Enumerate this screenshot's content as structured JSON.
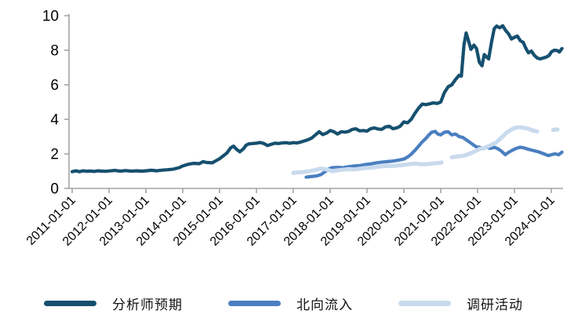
{
  "chart_data": {
    "type": "line",
    "title": "",
    "xlabel": "",
    "ylabel": "",
    "ylim": [
      0,
      10
    ],
    "xlim_years": [
      2010.9,
      2024.45
    ],
    "grid": false,
    "legend_position": "bottom",
    "axis_color": "#a3a3a3",
    "tick_label_color": "#000000",
    "y_ticks": [
      "0",
      "2",
      "4",
      "6",
      "8",
      "10"
    ],
    "x_tick_labels": [
      "2011-01-01",
      "2012-01-01",
      "2013-01-01",
      "2014-01-01",
      "2015-01-01",
      "2016-01-01",
      "2017-01-01",
      "2018-01-01",
      "2019-01-01",
      "2020-01-01",
      "2021-01-01",
      "2022-01-01",
      "2023-01-01",
      "2024-01-01"
    ],
    "series": [
      {
        "key": "analyst-expectation",
        "name": "分析师预期",
        "color": "#16506f",
        "line_width": 4.2,
        "points": [
          [
            2011.0,
            0.97
          ],
          [
            2011.1,
            1.02
          ],
          [
            2011.2,
            0.97
          ],
          [
            2011.3,
            1.02
          ],
          [
            2011.4,
            0.99
          ],
          [
            2011.5,
            1.01
          ],
          [
            2011.6,
            0.98
          ],
          [
            2011.7,
            1.02
          ],
          [
            2011.8,
            1.0
          ],
          [
            2011.9,
            0.99
          ],
          [
            2012.0,
            1.01
          ],
          [
            2012.15,
            1.04
          ],
          [
            2012.3,
            1.0
          ],
          [
            2012.45,
            1.03
          ],
          [
            2012.6,
            1.0
          ],
          [
            2012.75,
            1.02
          ],
          [
            2012.9,
            1.0
          ],
          [
            2013.0,
            1.02
          ],
          [
            2013.15,
            1.05
          ],
          [
            2013.3,
            1.02
          ],
          [
            2013.45,
            1.06
          ],
          [
            2013.6,
            1.08
          ],
          [
            2013.75,
            1.12
          ],
          [
            2013.9,
            1.2
          ],
          [
            2014.0,
            1.3
          ],
          [
            2014.15,
            1.4
          ],
          [
            2014.3,
            1.45
          ],
          [
            2014.45,
            1.43
          ],
          [
            2014.55,
            1.55
          ],
          [
            2014.65,
            1.5
          ],
          [
            2014.8,
            1.48
          ],
          [
            2014.9,
            1.6
          ],
          [
            2015.0,
            1.72
          ],
          [
            2015.1,
            1.88
          ],
          [
            2015.2,
            2.05
          ],
          [
            2015.3,
            2.35
          ],
          [
            2015.38,
            2.45
          ],
          [
            2015.45,
            2.28
          ],
          [
            2015.55,
            2.12
          ],
          [
            2015.65,
            2.3
          ],
          [
            2015.72,
            2.5
          ],
          [
            2015.8,
            2.58
          ],
          [
            2015.9,
            2.6
          ],
          [
            2016.0,
            2.62
          ],
          [
            2016.1,
            2.66
          ],
          [
            2016.2,
            2.6
          ],
          [
            2016.3,
            2.48
          ],
          [
            2016.4,
            2.55
          ],
          [
            2016.5,
            2.62
          ],
          [
            2016.6,
            2.6
          ],
          [
            2016.7,
            2.63
          ],
          [
            2016.8,
            2.65
          ],
          [
            2016.9,
            2.61
          ],
          [
            2017.0,
            2.65
          ],
          [
            2017.1,
            2.63
          ],
          [
            2017.2,
            2.68
          ],
          [
            2017.3,
            2.75
          ],
          [
            2017.4,
            2.82
          ],
          [
            2017.5,
            2.92
          ],
          [
            2017.6,
            3.1
          ],
          [
            2017.7,
            3.28
          ],
          [
            2017.8,
            3.12
          ],
          [
            2017.9,
            3.2
          ],
          [
            2018.0,
            3.35
          ],
          [
            2018.1,
            3.28
          ],
          [
            2018.2,
            3.15
          ],
          [
            2018.3,
            3.28
          ],
          [
            2018.4,
            3.26
          ],
          [
            2018.5,
            3.3
          ],
          [
            2018.6,
            3.42
          ],
          [
            2018.7,
            3.45
          ],
          [
            2018.8,
            3.33
          ],
          [
            2018.9,
            3.35
          ],
          [
            2019.0,
            3.32
          ],
          [
            2019.1,
            3.46
          ],
          [
            2019.2,
            3.5
          ],
          [
            2019.3,
            3.44
          ],
          [
            2019.4,
            3.42
          ],
          [
            2019.5,
            3.56
          ],
          [
            2019.6,
            3.6
          ],
          [
            2019.7,
            3.46
          ],
          [
            2019.8,
            3.5
          ],
          [
            2019.9,
            3.6
          ],
          [
            2020.0,
            3.85
          ],
          [
            2020.1,
            3.8
          ],
          [
            2020.2,
            4.0
          ],
          [
            2020.3,
            4.35
          ],
          [
            2020.4,
            4.65
          ],
          [
            2020.5,
            4.88
          ],
          [
            2020.6,
            4.85
          ],
          [
            2020.7,
            4.9
          ],
          [
            2020.8,
            4.95
          ],
          [
            2020.9,
            4.92
          ],
          [
            2021.0,
            5.0
          ],
          [
            2021.1,
            5.55
          ],
          [
            2021.2,
            5.88
          ],
          [
            2021.3,
            6.0
          ],
          [
            2021.4,
            6.3
          ],
          [
            2021.5,
            6.55
          ],
          [
            2021.56,
            6.5
          ],
          [
            2021.63,
            8.3
          ],
          [
            2021.69,
            9.0
          ],
          [
            2021.76,
            8.5
          ],
          [
            2021.82,
            8.05
          ],
          [
            2021.9,
            8.3
          ],
          [
            2021.97,
            8.1
          ],
          [
            2022.05,
            7.3
          ],
          [
            2022.12,
            7.1
          ],
          [
            2022.18,
            7.75
          ],
          [
            2022.25,
            7.6
          ],
          [
            2022.3,
            7.5
          ],
          [
            2022.38,
            8.5
          ],
          [
            2022.45,
            9.25
          ],
          [
            2022.52,
            9.4
          ],
          [
            2022.6,
            9.3
          ],
          [
            2022.68,
            9.42
          ],
          [
            2022.76,
            9.15
          ],
          [
            2022.84,
            8.95
          ],
          [
            2022.92,
            8.65
          ],
          [
            2023.0,
            8.75
          ],
          [
            2023.08,
            8.82
          ],
          [
            2023.16,
            8.55
          ],
          [
            2023.24,
            8.45
          ],
          [
            2023.3,
            8.15
          ],
          [
            2023.38,
            7.85
          ],
          [
            2023.46,
            7.95
          ],
          [
            2023.54,
            7.7
          ],
          [
            2023.62,
            7.55
          ],
          [
            2023.7,
            7.5
          ],
          [
            2023.78,
            7.55
          ],
          [
            2023.86,
            7.6
          ],
          [
            2023.94,
            7.7
          ],
          [
            2024.0,
            7.9
          ],
          [
            2024.08,
            8.0
          ],
          [
            2024.16,
            7.98
          ],
          [
            2024.22,
            7.9
          ],
          [
            2024.29,
            8.1
          ]
        ]
      },
      {
        "key": "northbound-inflow",
        "name": "北向流入",
        "color": "#4a7fc1",
        "line_width": 4.2,
        "points": [
          [
            2017.35,
            0.65
          ],
          [
            2017.45,
            0.68
          ],
          [
            2017.55,
            0.7
          ],
          [
            2017.65,
            0.73
          ],
          [
            2017.75,
            0.8
          ],
          [
            2017.85,
            0.95
          ],
          [
            2017.95,
            1.12
          ],
          [
            2018.05,
            1.2
          ],
          [
            2018.2,
            1.22
          ],
          [
            2018.35,
            1.2
          ],
          [
            2018.5,
            1.26
          ],
          [
            2018.65,
            1.3
          ],
          [
            2018.8,
            1.32
          ],
          [
            2018.95,
            1.38
          ],
          [
            2019.1,
            1.42
          ],
          [
            2019.25,
            1.48
          ],
          [
            2019.4,
            1.52
          ],
          [
            2019.55,
            1.55
          ],
          [
            2019.7,
            1.58
          ],
          [
            2019.85,
            1.63
          ],
          [
            2020.0,
            1.7
          ],
          [
            2020.1,
            1.82
          ],
          [
            2020.2,
            1.98
          ],
          [
            2020.3,
            2.2
          ],
          [
            2020.4,
            2.45
          ],
          [
            2020.5,
            2.7
          ],
          [
            2020.6,
            2.9
          ],
          [
            2020.68,
            3.1
          ],
          [
            2020.75,
            3.25
          ],
          [
            2020.85,
            3.3
          ],
          [
            2020.92,
            3.15
          ],
          [
            2021.0,
            3.1
          ],
          [
            2021.1,
            3.25
          ],
          [
            2021.2,
            3.28
          ],
          [
            2021.3,
            3.1
          ],
          [
            2021.4,
            3.15
          ],
          [
            2021.5,
            3.0
          ],
          [
            2021.6,
            2.95
          ],
          [
            2021.7,
            2.8
          ],
          [
            2021.8,
            2.65
          ],
          [
            2021.9,
            2.5
          ],
          [
            2021.97,
            2.4
          ],
          [
            2022.05,
            2.38
          ],
          [
            2022.15,
            2.3
          ],
          [
            2022.25,
            2.38
          ],
          [
            2022.35,
            2.32
          ],
          [
            2022.45,
            2.38
          ],
          [
            2022.55,
            2.3
          ],
          [
            2022.65,
            2.15
          ],
          [
            2022.75,
            1.95
          ],
          [
            2022.85,
            2.1
          ],
          [
            2022.95,
            2.22
          ],
          [
            2023.05,
            2.32
          ],
          [
            2023.15,
            2.38
          ],
          [
            2023.25,
            2.35
          ],
          [
            2023.35,
            2.28
          ],
          [
            2023.5,
            2.2
          ],
          [
            2023.65,
            2.12
          ],
          [
            2023.8,
            2.0
          ],
          [
            2023.92,
            1.9
          ],
          [
            2024.0,
            1.95
          ],
          [
            2024.1,
            2.0
          ],
          [
            2024.2,
            1.95
          ],
          [
            2024.29,
            2.1
          ]
        ]
      },
      {
        "key": "survey-activity",
        "name": "调研活动",
        "color": "#c9daee",
        "line_width": 5.2,
        "points": [
          [
            2017.0,
            0.9
          ],
          [
            2017.15,
            0.93
          ],
          [
            2017.3,
            0.95
          ],
          [
            2017.45,
            1.0
          ],
          [
            2017.6,
            1.07
          ],
          [
            2017.75,
            1.15
          ],
          [
            2017.9,
            1.1
          ],
          [
            2018.05,
            1.0
          ],
          [
            2018.2,
            1.05
          ],
          [
            2018.35,
            1.08
          ],
          [
            2018.5,
            1.12
          ],
          [
            2018.65,
            1.1
          ],
          [
            2018.8,
            1.14
          ],
          [
            2018.95,
            1.18
          ],
          [
            2019.1,
            1.2
          ],
          [
            2019.25,
            1.24
          ],
          [
            2019.4,
            1.28
          ],
          [
            2019.55,
            1.3
          ],
          [
            2019.7,
            1.3
          ],
          [
            2019.85,
            1.33
          ],
          [
            2020.0,
            1.36
          ],
          [
            2020.15,
            1.4
          ],
          [
            2020.3,
            1.44
          ],
          [
            2020.45,
            1.4
          ],
          [
            2020.6,
            1.4
          ],
          [
            2020.75,
            1.44
          ],
          [
            2020.9,
            1.46
          ],
          [
            2021.02,
            1.5
          ],
          null,
          [
            2021.3,
            1.8
          ],
          [
            2021.45,
            1.85
          ],
          [
            2021.6,
            1.88
          ],
          [
            2021.75,
            1.98
          ],
          [
            2021.9,
            2.12
          ],
          [
            2022.05,
            2.28
          ],
          [
            2022.2,
            2.35
          ],
          [
            2022.35,
            2.5
          ],
          [
            2022.5,
            2.65
          ],
          [
            2022.65,
            2.95
          ],
          [
            2022.8,
            3.25
          ],
          [
            2022.95,
            3.45
          ],
          [
            2023.05,
            3.52
          ],
          [
            2023.15,
            3.55
          ],
          [
            2023.25,
            3.5
          ],
          [
            2023.38,
            3.45
          ],
          [
            2023.5,
            3.35
          ],
          [
            2023.62,
            3.3
          ],
          null,
          [
            2024.05,
            3.38
          ],
          [
            2024.17,
            3.42
          ]
        ]
      }
    ]
  }
}
